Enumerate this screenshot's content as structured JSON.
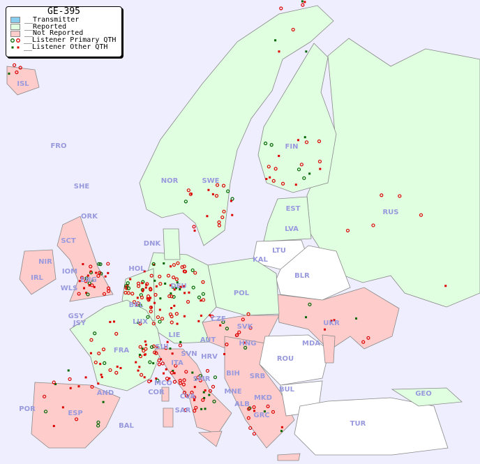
{
  "legend": {
    "title": "GE-395",
    "items": [
      {
        "label": "__Transmitter",
        "color": "#88ccee"
      },
      {
        "label": "__Reported",
        "color": "#e0ffe0"
      },
      {
        "label": "__Not Reported",
        "color": "#ffcccc"
      },
      {
        "label": "__Listener Primary QTH",
        "colors": [
          "#006600",
          "#dd0000"
        ]
      },
      {
        "label": "__Listener Other QTH",
        "colors": [
          "#006600",
          "#dd0000"
        ]
      }
    ]
  },
  "colors": {
    "sea": "#eeeeff",
    "reported": "#e0ffe0",
    "not_reported": "#ffcccc",
    "no_data": "#ffffff",
    "label": "#9999dd"
  },
  "countries": [
    "ISL",
    "FRO",
    "SHE",
    "ORK",
    "NOR",
    "SWE",
    "FIN",
    "EST",
    "RUS",
    "LVA",
    "LTU",
    "DNK",
    "SCT",
    "NIR",
    "IOM",
    "IRL",
    "WLS",
    "ENG",
    "HOL",
    "BEL",
    "DEU",
    "POL",
    "KAL",
    "BLR",
    "GSY",
    "JSY",
    "LUX",
    "CZE",
    "SVK",
    "UKR",
    "LIE",
    "AUT",
    "HNG",
    "MDA",
    "SUI",
    "FRA",
    "SVN",
    "HRV",
    "ITA",
    "ROU",
    "MCO",
    "COR",
    "SMR",
    "BIH",
    "SRB",
    "AND",
    "CVA",
    "MNE",
    "BUL",
    "GEO",
    "POR",
    "ESP",
    "ALB",
    "MKD",
    "SAR",
    "BAL",
    "GRC",
    "TUR"
  ]
}
